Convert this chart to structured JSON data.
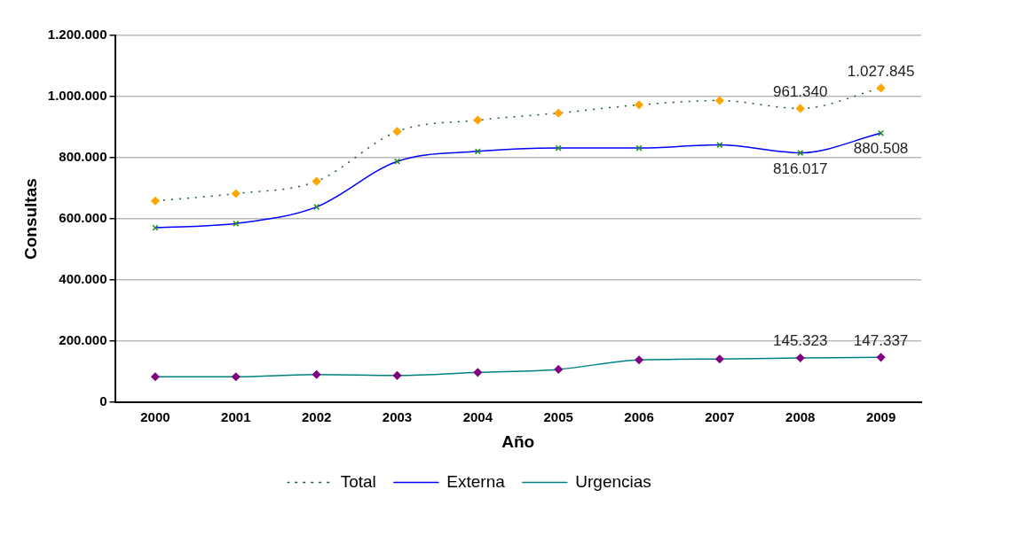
{
  "chart_data": {
    "type": "line",
    "xlabel": "Año",
    "ylabel": "Consultas",
    "categories": [
      "2000",
      "2001",
      "2002",
      "2003",
      "2004",
      "2005",
      "2006",
      "2007",
      "2008",
      "2009"
    ],
    "series": [
      {
        "name": "Total",
        "color": "#1f5a2e",
        "line_style": "dotted",
        "marker": "diamond",
        "values": [
          659000,
          683000,
          723000,
          886000,
          923000,
          946000,
          973000,
          987000,
          961340,
          1027845
        ],
        "value_labels": [
          null,
          null,
          null,
          null,
          null,
          null,
          null,
          null,
          "961.340",
          "1.027.845"
        ]
      },
      {
        "name": "Externa",
        "color": "#0000ff",
        "line_style": "solid",
        "marker": "cross",
        "values": [
          571000,
          585000,
          639000,
          788000,
          821000,
          832000,
          832000,
          842000,
          816017,
          880508
        ],
        "value_labels": [
          null,
          null,
          null,
          null,
          null,
          null,
          null,
          null,
          "816.017",
          "880.508"
        ]
      },
      {
        "name": "Urgencias",
        "color": "#008080",
        "line_style": "solid",
        "marker": "diamond",
        "values": [
          84000,
          84000,
          91000,
          88000,
          98000,
          108000,
          139000,
          142000,
          145323,
          147337
        ],
        "value_labels": [
          null,
          null,
          null,
          null,
          null,
          null,
          null,
          null,
          "145.323",
          "147.337"
        ]
      }
    ],
    "ylim": [
      0,
      1200000
    ],
    "yticks": [
      {
        "value": 0,
        "label": "0"
      },
      {
        "value": 200000,
        "label": "200.000"
      },
      {
        "value": 400000,
        "label": "400.000"
      },
      {
        "value": 600000,
        "label": "600.000"
      },
      {
        "value": 800000,
        "label": "800.000"
      },
      {
        "value": 1000000,
        "label": "1.000.000"
      },
      {
        "value": 1200000,
        "label": "1.200.000"
      }
    ],
    "grid": "y",
    "legend": "bottom"
  }
}
